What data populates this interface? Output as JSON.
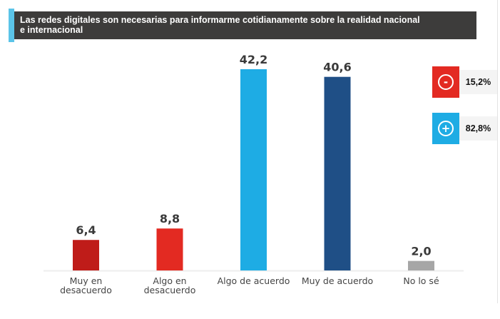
{
  "chart_data": {
    "type": "bar",
    "title": "Las redes digitales son necesarias para informarme cotidianamente sobre la realidad nacional e internacional",
    "title_lines": [
      "Las redes digitales son necesarias para informarme cotidianamente sobre la realidad nacional",
      "e internacional"
    ],
    "categories": [
      [
        "Muy en",
        "desacuerdo"
      ],
      [
        "Algo en",
        "desacuerdo"
      ],
      [
        "Algo de acuerdo"
      ],
      [
        "Muy de acuerdo"
      ],
      [
        "No lo sé"
      ]
    ],
    "values": [
      6.4,
      8.8,
      42.2,
      40.6,
      2.0
    ],
    "value_labels": [
      "6,4",
      "8,8",
      "42,2",
      "40,6",
      "2,0"
    ],
    "colors": [
      "#bf1c19",
      "#e32a22",
      "#1eace4",
      "#1f4f86",
      "#a6a6a6"
    ],
    "xlabel": "",
    "ylabel": "",
    "ylim": [
      0,
      42.2
    ],
    "grid": false,
    "legend": "none"
  },
  "summary": {
    "negative": {
      "icon": "minus-circle-icon",
      "symbol": "-",
      "value": "15,2%",
      "color": "#e32a22"
    },
    "positive": {
      "icon": "plus-circle-icon",
      "symbol": "+",
      "value": "82,8%",
      "color": "#1eace4"
    }
  }
}
